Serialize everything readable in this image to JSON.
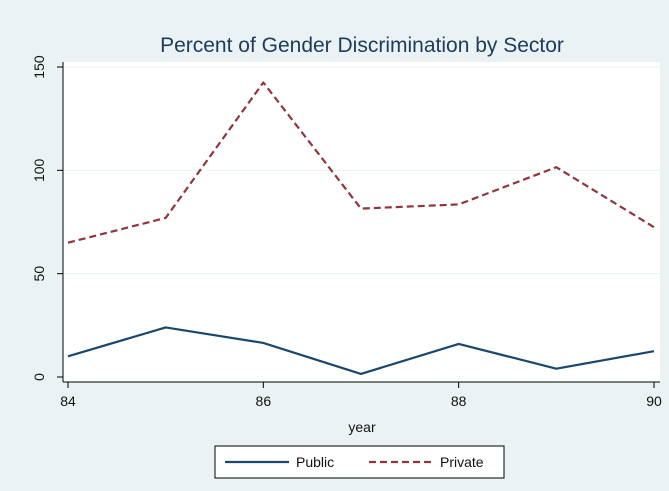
{
  "chart_data": {
    "type": "line",
    "title": "Percent of Gender Discrimination by Sector",
    "xlabel": "year",
    "ylabel": "",
    "x": [
      84,
      85,
      86,
      87,
      88,
      89,
      90
    ],
    "xticks": [
      84,
      86,
      88,
      90
    ],
    "yticks": [
      0,
      50,
      100,
      150
    ],
    "xlim": [
      84,
      90
    ],
    "ylim": [
      0,
      150
    ],
    "grid": true,
    "legend_position": "bottom",
    "series": [
      {
        "name": "Public",
        "values": [
          10,
          24,
          16.5,
          1.5,
          16,
          4,
          12.5
        ],
        "color": "#1a476f",
        "dash": "solid"
      },
      {
        "name": "Private",
        "values": [
          65,
          77,
          142.5,
          81.5,
          83.5,
          101.5,
          72.5
        ],
        "color": "#90353b",
        "dash": "dashed"
      }
    ]
  }
}
